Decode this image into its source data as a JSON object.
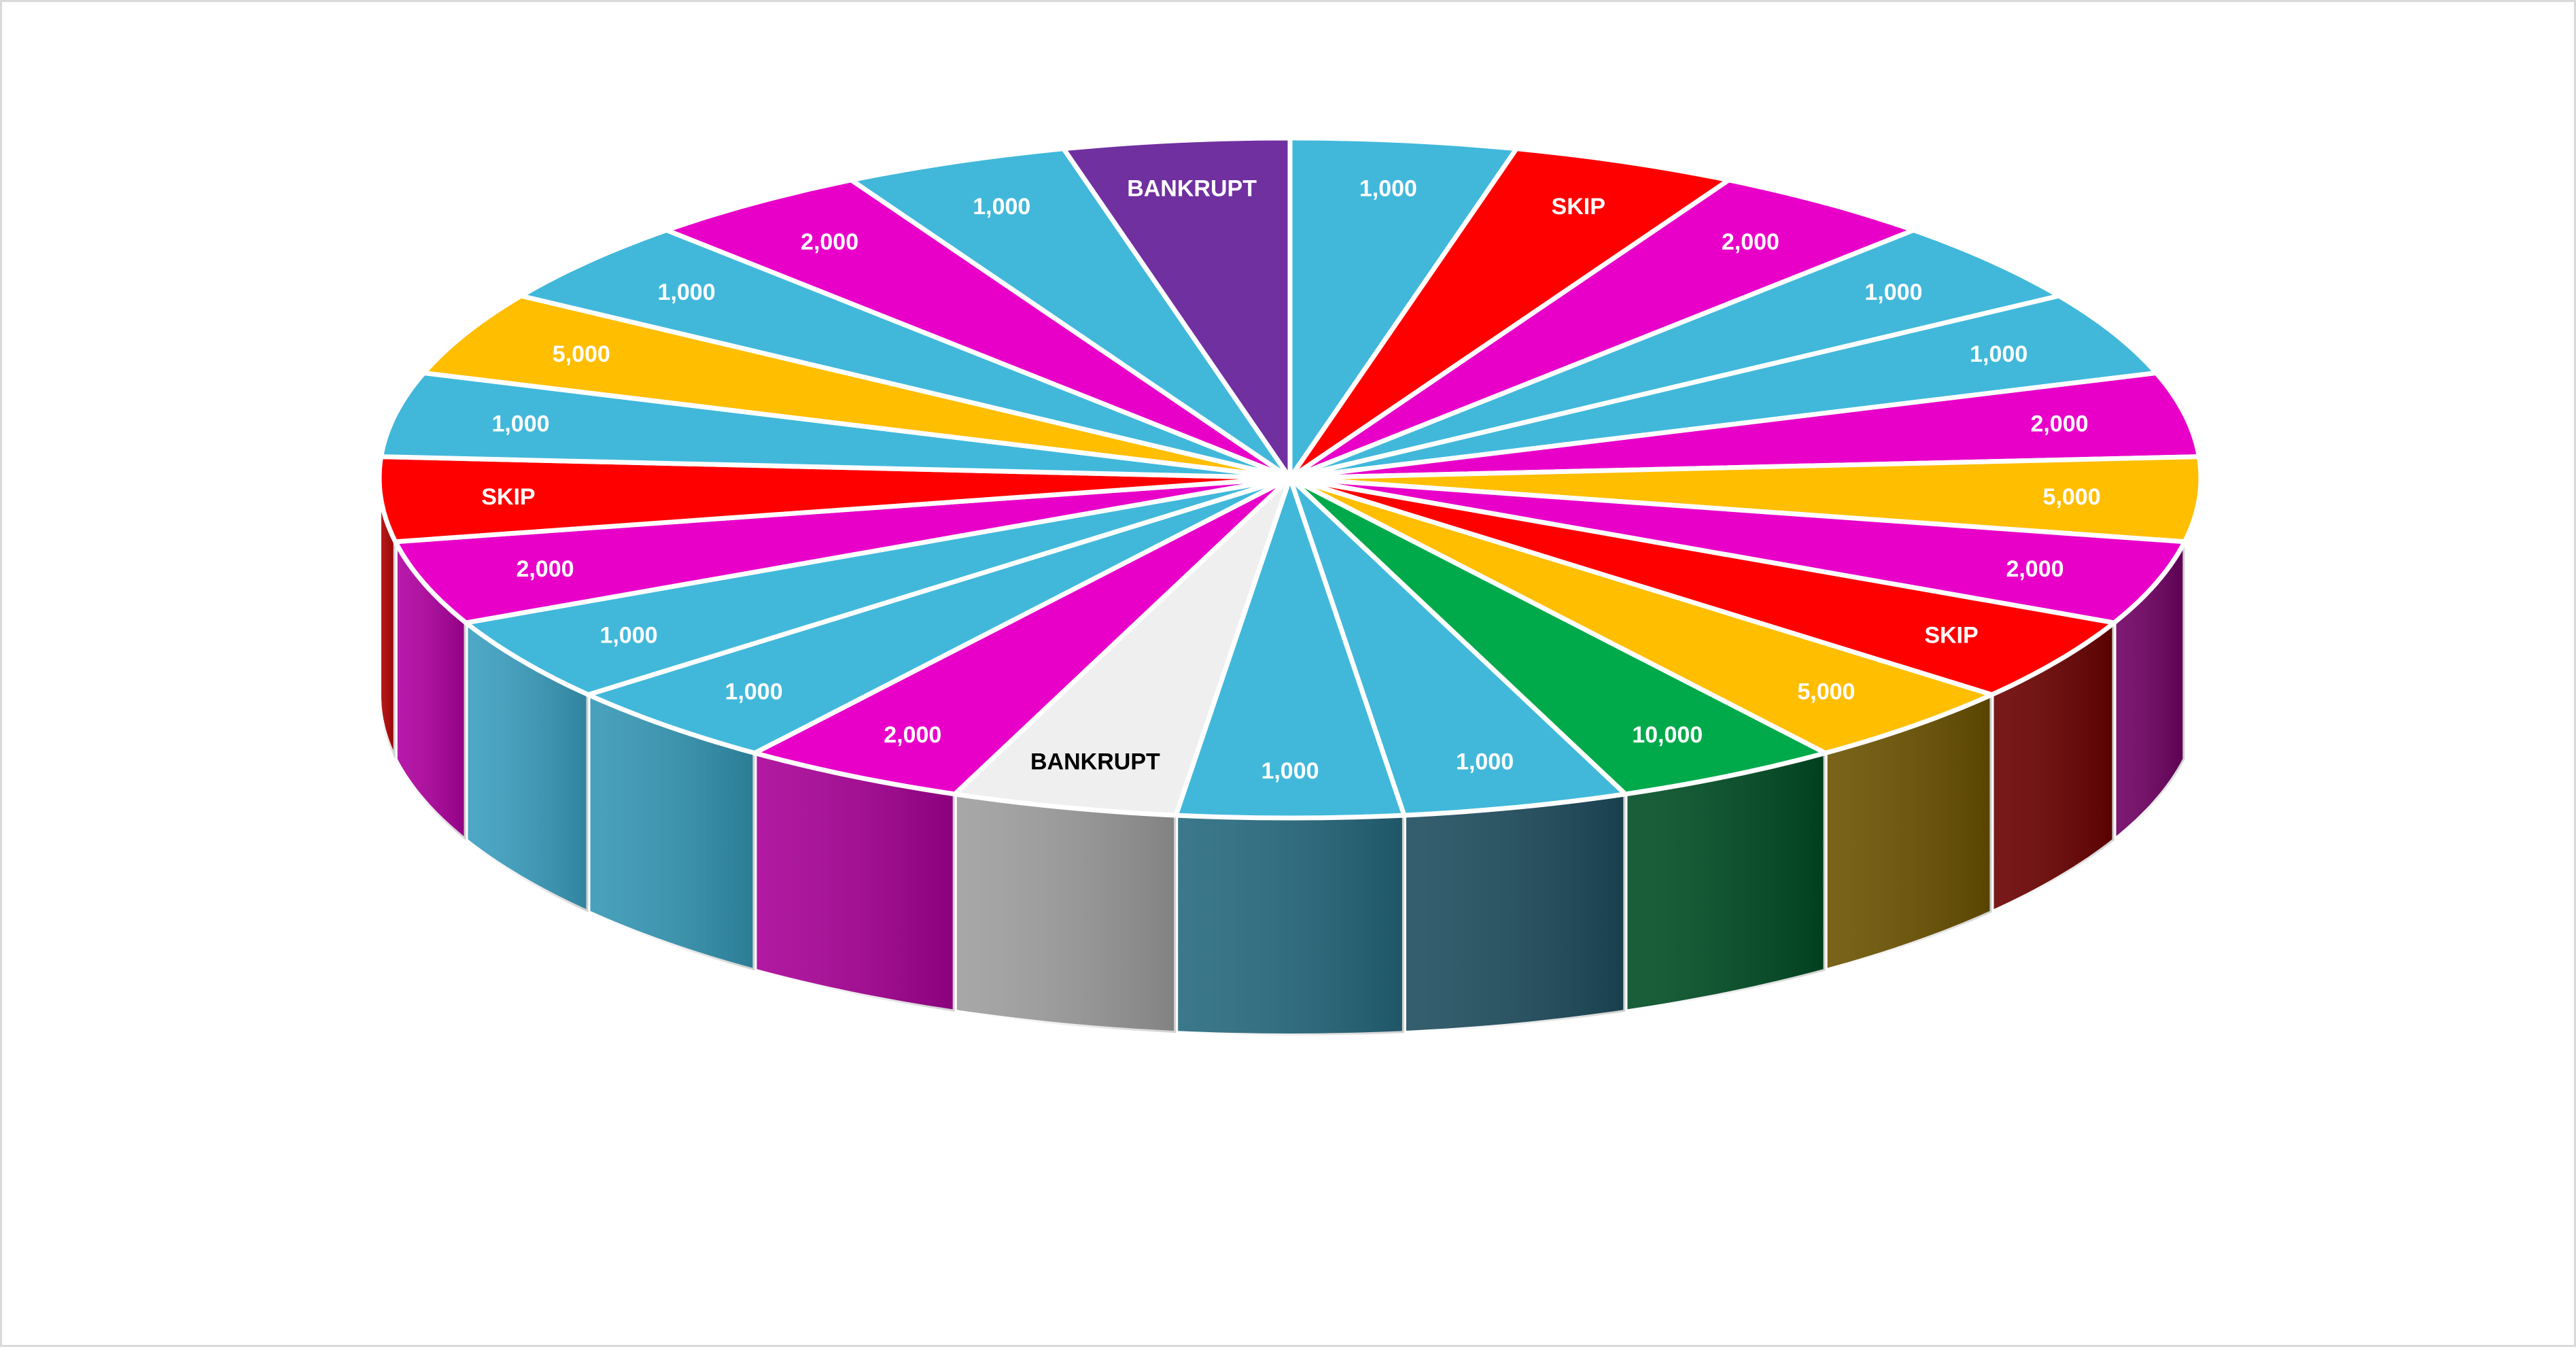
{
  "game": {
    "name": "",
    "wheel": {
      "segments": [
        {
          "label": "1,000",
          "top_color": "#41B8DA",
          "side_color": "#2E8FAE"
        },
        {
          "label": "SKIP",
          "top_color": "#FF0000",
          "side_color": "#7A0000"
        },
        {
          "label": "2,000",
          "top_color": "#E800C9",
          "side_color": "#9A0088"
        },
        {
          "label": "1,000",
          "top_color": "#41B8DA",
          "side_color": "#2E8FAE"
        },
        {
          "label": "1,000",
          "top_color": "#41B8DA",
          "side_color": "#2E8FAE"
        },
        {
          "label": "2,000",
          "top_color": "#E800C9",
          "side_color": "#9A0088"
        },
        {
          "label": "5,000",
          "top_color": "#FFBE00",
          "side_color": "#6B5200"
        },
        {
          "label": "2,000",
          "top_color": "#E800C9",
          "side_color": "#700063"
        },
        {
          "label": "SKIP",
          "top_color": "#FF0000",
          "side_color": "#6B0000"
        },
        {
          "label": "5,000",
          "top_color": "#FFBE00",
          "side_color": "#6B5200"
        },
        {
          "label": "10,000",
          "top_color": "#00AA4B",
          "side_color": "#004D24"
        },
        {
          "label": "1,000",
          "top_color": "#41B8DA",
          "side_color": "#1E4D5E"
        },
        {
          "label": "1,000",
          "top_color": "#41B8DA",
          "side_color": "#25697E"
        },
        {
          "label": "BANKRUPT",
          "top_color": "#EFEFEF",
          "side_color": "#9E9E9E",
          "text_color": "#000000"
        },
        {
          "label": "2,000",
          "top_color": "#E800C9",
          "side_color": "#A80096"
        },
        {
          "label": "1,000",
          "top_color": "#41B8DA",
          "side_color": "#3497B5"
        },
        {
          "label": "1,000",
          "top_color": "#41B8DA",
          "side_color": "#3A9FC0"
        },
        {
          "label": "2,000",
          "top_color": "#E800C9",
          "side_color": "#B000A0"
        },
        {
          "label": "SKIP",
          "top_color": "#FF0000",
          "side_color": "#B00000"
        },
        {
          "label": "1,000",
          "top_color": "#41B8DA",
          "side_color": "#2E8FAE"
        },
        {
          "label": "5,000",
          "top_color": "#FFBE00",
          "side_color": "#6B5200"
        },
        {
          "label": "1,000",
          "top_color": "#41B8DA",
          "side_color": "#2E8FAE"
        },
        {
          "label": "2,000",
          "top_color": "#E800C9",
          "side_color": "#9A0088"
        },
        {
          "label": "1,000",
          "top_color": "#41B8DA",
          "side_color": "#2E8FAE"
        },
        {
          "label": "BANKRUPT",
          "top_color": "#7030A0",
          "side_color": "#3C1A56",
          "text_color": "#FFFFFF"
        }
      ],
      "default_text_color": "#FFFFFF",
      "divider_color": "#FFFFFF"
    }
  }
}
